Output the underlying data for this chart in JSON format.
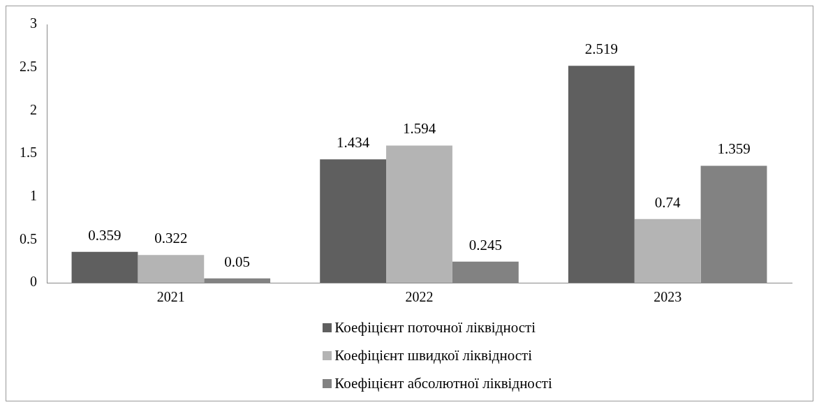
{
  "chart_data": {
    "type": "bar",
    "categories": [
      "2021",
      "2022",
      "2023"
    ],
    "series": [
      {
        "name": "Коефіцієнт поточної ліквідності",
        "color": "#5f5f5f",
        "values": [
          0.359,
          1.434,
          2.519
        ]
      },
      {
        "name": "Коефіцієнт швидкої ліквідності",
        "color": "#b4b4b4",
        "values": [
          0.322,
          1.594,
          0.74
        ]
      },
      {
        "name": "Коефіцієнт абсолютної ліквідності",
        "color": "#828282",
        "values": [
          0.05,
          0.245,
          1.359
        ]
      }
    ],
    "ylim": [
      0,
      3
    ],
    "yticks": [
      0,
      0.5,
      1,
      1.5,
      2,
      2.5,
      3
    ],
    "grid": false,
    "legend": "bottom",
    "data_labels": true
  }
}
